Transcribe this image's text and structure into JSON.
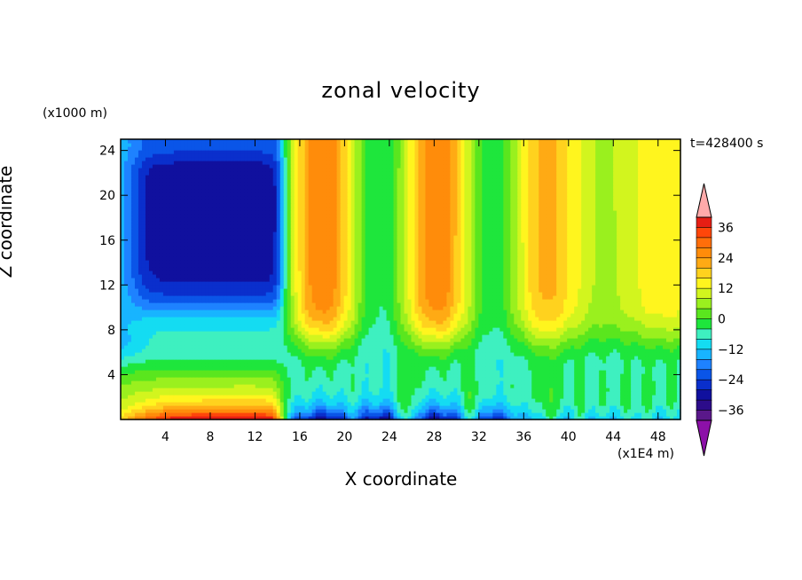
{
  "chart_data": {
    "type": "heatmap",
    "title": "zonal velocity",
    "xlabel": "X coordinate",
    "ylabel": "Z coordinate",
    "x_unit": "(x1E4 m)",
    "y_unit": "(x1000 m)",
    "time_label": "t=428400 s",
    "xlim": [
      0,
      50
    ],
    "ylim": [
      0,
      25
    ],
    "x_ticks": [
      4,
      8,
      12,
      16,
      20,
      24,
      28,
      32,
      36,
      40,
      44,
      48
    ],
    "y_ticks": [
      4,
      8,
      12,
      16,
      20,
      24
    ],
    "colorbar": {
      "levels": [
        -40,
        -36,
        -32,
        -28,
        -24,
        -20,
        -16,
        -12,
        -8,
        -4,
        0,
        4,
        8,
        12,
        16,
        20,
        24,
        28,
        32,
        36,
        40
      ],
      "colors": [
        "#5a188a",
        "#2c0c8a",
        "#10109e",
        "#0a2fcc",
        "#0a55e8",
        "#1e82ff",
        "#18b4ff",
        "#14dcf2",
        "#3ef0c0",
        "#1ee63c",
        "#5ae61e",
        "#9af01e",
        "#d2f51e",
        "#fff51e",
        "#ffd21e",
        "#ffaa14",
        "#ff8c0a",
        "#ff6e0a",
        "#ff460a",
        "#e61e14"
      ],
      "under_color": "#8c10a8",
      "over_color": "#ffaaaa",
      "tick_labels": [
        36,
        24,
        12,
        0,
        -12,
        -24,
        -36
      ]
    },
    "features": [
      {
        "desc": "strong westward jet aloft",
        "x_range": [
          2,
          14
        ],
        "z_range": [
          10,
          25
        ],
        "value": -36
      },
      {
        "desc": "eastward surface jet",
        "x_range": [
          0,
          14
        ],
        "z_range": [
          0,
          2.5
        ],
        "value": 36
      },
      {
        "desc": "eastward flow aloft",
        "x_range": [
          15,
          30
        ],
        "z_range": [
          8,
          25
        ],
        "value": 28
      },
      {
        "desc": "westward near-surface flow",
        "x_range": [
          16,
          32
        ],
        "z_range": [
          0,
          3
        ],
        "value": -30
      }
    ]
  }
}
